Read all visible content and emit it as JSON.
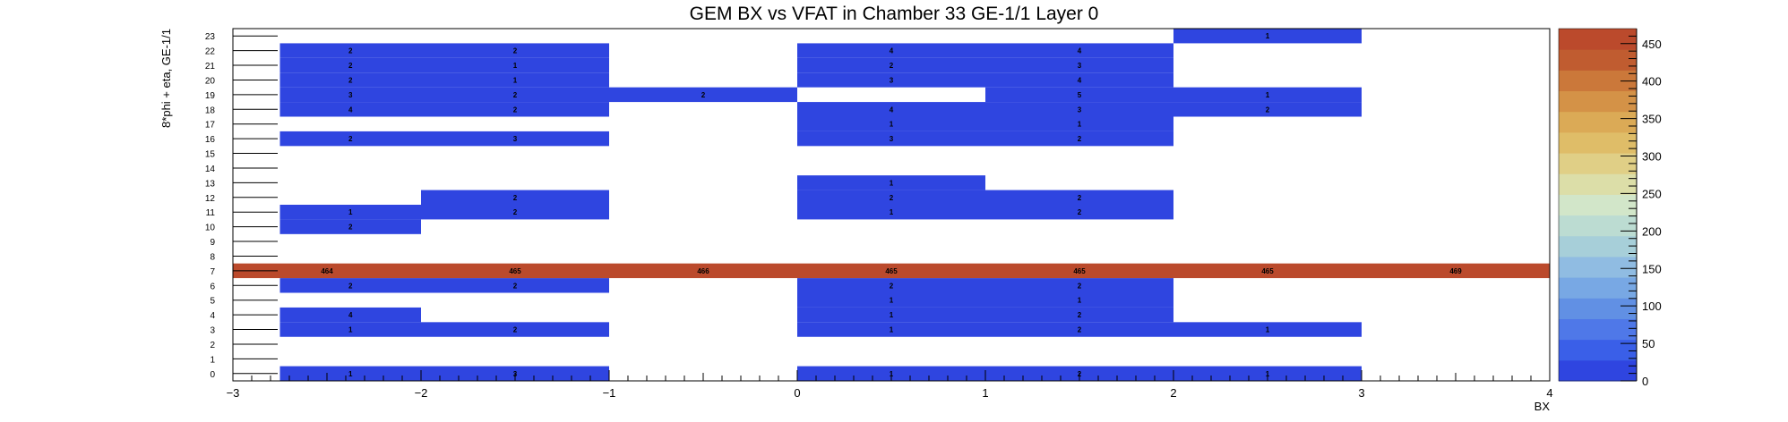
{
  "chart_data": {
    "type": "heatmap",
    "title": "GEM BX vs VFAT in Chamber 33 GE-1/1 Layer 0",
    "xlabel": "BX",
    "ylabel": "8*phi + eta, GE-1/1",
    "xlim": [
      -3,
      4
    ],
    "ylim": [
      0,
      24
    ],
    "x_ticks": [
      "−3",
      "−2",
      "−1",
      "0",
      "1",
      "2",
      "3",
      "4"
    ],
    "y_ticks": [
      "0",
      "1",
      "2",
      "3",
      "4",
      "5",
      "6",
      "7",
      "8",
      "9",
      "10",
      "11",
      "12",
      "13",
      "14",
      "15",
      "16",
      "17",
      "18",
      "19",
      "20",
      "21",
      "22",
      "23"
    ],
    "z_ticks": [
      "0",
      "50",
      "100",
      "150",
      "200",
      "250",
      "300",
      "350",
      "400",
      "450"
    ],
    "zlim": [
      0,
      470
    ],
    "palette": [
      "#2f45e0",
      "#3a5fe8",
      "#4f78e8",
      "#6190e4",
      "#78a8e4",
      "#90bce2",
      "#a7cfd9",
      "#bcdcd2",
      "#d2e6c9",
      "#dcdea8",
      "#e0cf86",
      "#dfbd68",
      "#dbaa56",
      "#d49247",
      "#cb783a",
      "#c05c30",
      "#bb4a2c"
    ],
    "cells": [
      {
        "x0": -2.75,
        "x1": -2.0,
        "y": 0,
        "value": 1
      },
      {
        "x0": -2.0,
        "x1": -1.0,
        "y": 0,
        "value": 3
      },
      {
        "x0": 0.0,
        "x1": 1.0,
        "y": 0,
        "value": 1
      },
      {
        "x0": 1.0,
        "x1": 2.0,
        "y": 0,
        "value": 2
      },
      {
        "x0": 2.0,
        "x1": 3.0,
        "y": 0,
        "value": 1
      },
      {
        "x0": -2.75,
        "x1": -2.0,
        "y": 3,
        "value": 1
      },
      {
        "x0": -2.0,
        "x1": -1.0,
        "y": 3,
        "value": 2
      },
      {
        "x0": 0.0,
        "x1": 1.0,
        "y": 3,
        "value": 1
      },
      {
        "x0": 1.0,
        "x1": 2.0,
        "y": 3,
        "value": 2
      },
      {
        "x0": 2.0,
        "x1": 3.0,
        "y": 3,
        "value": 1
      },
      {
        "x0": -2.75,
        "x1": -2.0,
        "y": 4,
        "value": 4
      },
      {
        "x0": 0.0,
        "x1": 1.0,
        "y": 4,
        "value": 1
      },
      {
        "x0": 1.0,
        "x1": 2.0,
        "y": 4,
        "value": 2
      },
      {
        "x0": 0.0,
        "x1": 1.0,
        "y": 5,
        "value": 1
      },
      {
        "x0": 1.0,
        "x1": 2.0,
        "y": 5,
        "value": 1
      },
      {
        "x0": -2.75,
        "x1": -2.0,
        "y": 6,
        "value": 2
      },
      {
        "x0": -2.0,
        "x1": -1.0,
        "y": 6,
        "value": 2
      },
      {
        "x0": 0.0,
        "x1": 1.0,
        "y": 6,
        "value": 2
      },
      {
        "x0": 1.0,
        "x1": 2.0,
        "y": 6,
        "value": 2
      },
      {
        "x0": -3.0,
        "x1": -2.0,
        "y": 7,
        "value": 464
      },
      {
        "x0": -2.0,
        "x1": -1.0,
        "y": 7,
        "value": 465
      },
      {
        "x0": -1.0,
        "x1": 0.0,
        "y": 7,
        "value": 466
      },
      {
        "x0": 0.0,
        "x1": 1.0,
        "y": 7,
        "value": 465
      },
      {
        "x0": 1.0,
        "x1": 2.0,
        "y": 7,
        "value": 465
      },
      {
        "x0": 2.0,
        "x1": 3.0,
        "y": 7,
        "value": 465
      },
      {
        "x0": 3.0,
        "x1": 4.0,
        "y": 7,
        "value": 469
      },
      {
        "x0": -2.75,
        "x1": -2.0,
        "y": 10,
        "value": 2
      },
      {
        "x0": -2.75,
        "x1": -2.0,
        "y": 11,
        "value": 1
      },
      {
        "x0": -2.0,
        "x1": -1.0,
        "y": 11,
        "value": 2
      },
      {
        "x0": 0.0,
        "x1": 1.0,
        "y": 11,
        "value": 1
      },
      {
        "x0": 1.0,
        "x1": 2.0,
        "y": 11,
        "value": 2
      },
      {
        "x0": -2.0,
        "x1": -1.0,
        "y": 12,
        "value": 2
      },
      {
        "x0": 0.0,
        "x1": 1.0,
        "y": 12,
        "value": 2
      },
      {
        "x0": 1.0,
        "x1": 2.0,
        "y": 12,
        "value": 2
      },
      {
        "x0": 0.0,
        "x1": 1.0,
        "y": 13,
        "value": 1
      },
      {
        "x0": -2.75,
        "x1": -2.0,
        "y": 16,
        "value": 2
      },
      {
        "x0": -2.0,
        "x1": -1.0,
        "y": 16,
        "value": 3
      },
      {
        "x0": 0.0,
        "x1": 1.0,
        "y": 16,
        "value": 3
      },
      {
        "x0": 1.0,
        "x1": 2.0,
        "y": 16,
        "value": 2
      },
      {
        "x0": 0.0,
        "x1": 1.0,
        "y": 17,
        "value": 1
      },
      {
        "x0": 1.0,
        "x1": 2.0,
        "y": 17,
        "value": 1
      },
      {
        "x0": -2.75,
        "x1": -2.0,
        "y": 18,
        "value": 4
      },
      {
        "x0": -2.0,
        "x1": -1.0,
        "y": 18,
        "value": 2
      },
      {
        "x0": 0.0,
        "x1": 1.0,
        "y": 18,
        "value": 4
      },
      {
        "x0": 1.0,
        "x1": 2.0,
        "y": 18,
        "value": 3
      },
      {
        "x0": 2.0,
        "x1": 3.0,
        "y": 18,
        "value": 2
      },
      {
        "x0": -2.75,
        "x1": -2.0,
        "y": 19,
        "value": 3
      },
      {
        "x0": -2.0,
        "x1": -1.0,
        "y": 19,
        "value": 2
      },
      {
        "x0": -1.0,
        "x1": 0.0,
        "y": 19,
        "value": 2
      },
      {
        "x0": 1.0,
        "x1": 2.0,
        "y": 19,
        "value": 5
      },
      {
        "x0": 2.0,
        "x1": 3.0,
        "y": 19,
        "value": 1
      },
      {
        "x0": -2.75,
        "x1": -2.0,
        "y": 20,
        "value": 2
      },
      {
        "x0": -2.0,
        "x1": -1.0,
        "y": 20,
        "value": 1
      },
      {
        "x0": 0.0,
        "x1": 1.0,
        "y": 20,
        "value": 3
      },
      {
        "x0": 1.0,
        "x1": 2.0,
        "y": 20,
        "value": 4
      },
      {
        "x0": -2.75,
        "x1": -2.0,
        "y": 21,
        "value": 2
      },
      {
        "x0": -2.0,
        "x1": -1.0,
        "y": 21,
        "value": 1
      },
      {
        "x0": 0.0,
        "x1": 1.0,
        "y": 21,
        "value": 2
      },
      {
        "x0": 1.0,
        "x1": 2.0,
        "y": 21,
        "value": 3
      },
      {
        "x0": -2.75,
        "x1": -2.0,
        "y": 22,
        "value": 2
      },
      {
        "x0": -2.0,
        "x1": -1.0,
        "y": 22,
        "value": 2
      },
      {
        "x0": 0.0,
        "x1": 1.0,
        "y": 22,
        "value": 4
      },
      {
        "x0": 1.0,
        "x1": 2.0,
        "y": 22,
        "value": 4
      },
      {
        "x0": 2.0,
        "x1": 3.0,
        "y": 23,
        "value": 1
      }
    ]
  }
}
